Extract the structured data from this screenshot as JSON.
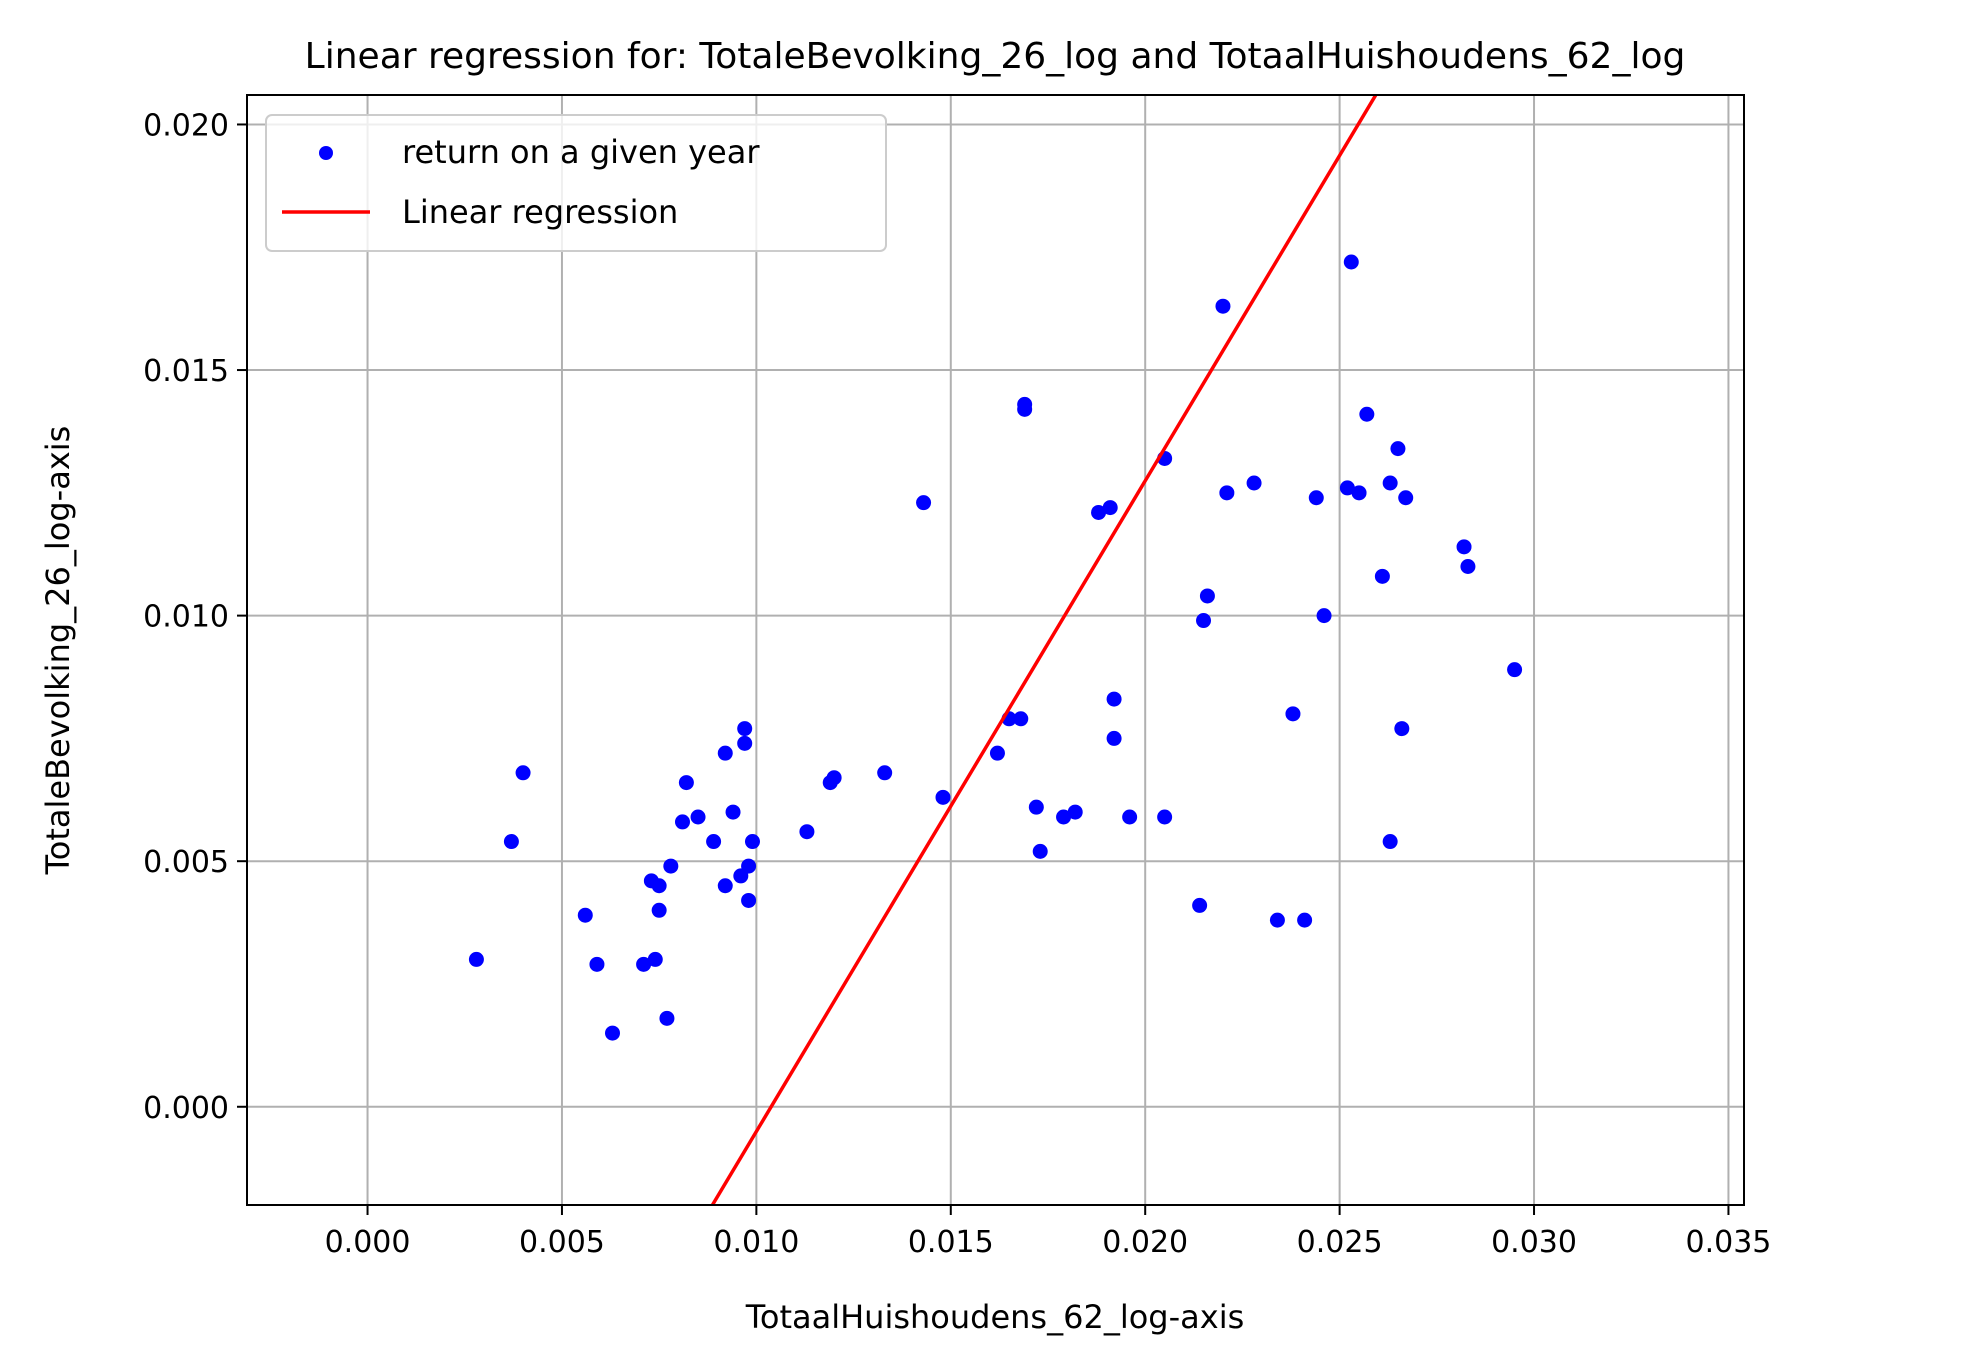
{
  "chart_data": {
    "type": "scatter",
    "title": "Linear regression for: TotaleBevolking_26_log and TotaalHuishoudens_62_log",
    "xlabel": "TotaalHuishoudens_62_log-axis",
    "ylabel": "TotaleBevolking_26_log-axis",
    "xlim": [
      -0.0031,
      0.0354
    ],
    "ylim": [
      -0.002,
      0.0206
    ],
    "xticks": [
      0.0,
      0.005,
      0.01,
      0.015,
      0.02,
      0.025,
      0.03,
      0.035
    ],
    "xtick_labels": [
      "0.000",
      "0.005",
      "0.010",
      "0.015",
      "0.020",
      "0.025",
      "0.030",
      "0.035"
    ],
    "yticks": [
      0.0,
      0.005,
      0.01,
      0.015,
      0.02
    ],
    "ytick_labels": [
      "0.000",
      "0.005",
      "0.010",
      "0.015",
      "0.020"
    ],
    "grid": true,
    "legend_position": "upper-left",
    "series": [
      {
        "name": "return on a given year",
        "kind": "scatter",
        "color": "#0000ff",
        "points": [
          [
            0.0028,
            0.003
          ],
          [
            0.0037,
            0.0054
          ],
          [
            0.004,
            0.0068
          ],
          [
            0.0056,
            0.0039
          ],
          [
            0.0059,
            0.0029
          ],
          [
            0.0063,
            0.0015
          ],
          [
            0.0071,
            0.0029
          ],
          [
            0.0073,
            0.0046
          ],
          [
            0.0074,
            0.003
          ],
          [
            0.0075,
            0.0045
          ],
          [
            0.0075,
            0.004
          ],
          [
            0.0077,
            0.0018
          ],
          [
            0.0078,
            0.0049
          ],
          [
            0.0081,
            0.0058
          ],
          [
            0.0082,
            0.0066
          ],
          [
            0.0085,
            0.0059
          ],
          [
            0.0089,
            0.0054
          ],
          [
            0.0092,
            0.0072
          ],
          [
            0.0092,
            0.0045
          ],
          [
            0.0094,
            0.006
          ],
          [
            0.0096,
            0.0047
          ],
          [
            0.0097,
            0.0077
          ],
          [
            0.0097,
            0.0074
          ],
          [
            0.0098,
            0.0049
          ],
          [
            0.0098,
            0.0042
          ],
          [
            0.0099,
            0.0054
          ],
          [
            0.0113,
            0.0056
          ],
          [
            0.0119,
            0.0066
          ],
          [
            0.012,
            0.0067
          ],
          [
            0.0133,
            0.0068
          ],
          [
            0.0143,
            0.0123
          ],
          [
            0.0148,
            0.0063
          ],
          [
            0.0162,
            0.0072
          ],
          [
            0.0165,
            0.0079
          ],
          [
            0.0168,
            0.0079
          ],
          [
            0.0169,
            0.0143
          ],
          [
            0.0169,
            0.0142
          ],
          [
            0.0172,
            0.0061
          ],
          [
            0.0173,
            0.0052
          ],
          [
            0.0179,
            0.0059
          ],
          [
            0.0182,
            0.006
          ],
          [
            0.0188,
            0.0121
          ],
          [
            0.0191,
            0.0122
          ],
          [
            0.0192,
            0.0075
          ],
          [
            0.0192,
            0.0083
          ],
          [
            0.0196,
            0.0059
          ],
          [
            0.0205,
            0.0132
          ],
          [
            0.0205,
            0.0059
          ],
          [
            0.0214,
            0.0041
          ],
          [
            0.0215,
            0.0099
          ],
          [
            0.0216,
            0.0104
          ],
          [
            0.022,
            0.0163
          ],
          [
            0.0221,
            0.0125
          ],
          [
            0.0228,
            0.0127
          ],
          [
            0.0234,
            0.0038
          ],
          [
            0.0238,
            0.008
          ],
          [
            0.0241,
            0.0038
          ],
          [
            0.0244,
            0.0124
          ],
          [
            0.0246,
            0.01
          ],
          [
            0.0252,
            0.0126
          ],
          [
            0.0253,
            0.0172
          ],
          [
            0.0255,
            0.0125
          ],
          [
            0.0257,
            0.0141
          ],
          [
            0.0261,
            0.0108
          ],
          [
            0.0263,
            0.0127
          ],
          [
            0.0263,
            0.0054
          ],
          [
            0.0265,
            0.0134
          ],
          [
            0.0266,
            0.0077
          ],
          [
            0.0267,
            0.0124
          ],
          [
            0.0282,
            0.0114
          ],
          [
            0.0283,
            0.011
          ],
          [
            0.0295,
            0.0089
          ]
        ]
      },
      {
        "name": "Linear regression",
        "kind": "line",
        "color": "#ff0000",
        "points": [
          [
            0.00887,
            -0.002
          ],
          [
            0.02593,
            0.0206
          ]
        ]
      }
    ]
  }
}
